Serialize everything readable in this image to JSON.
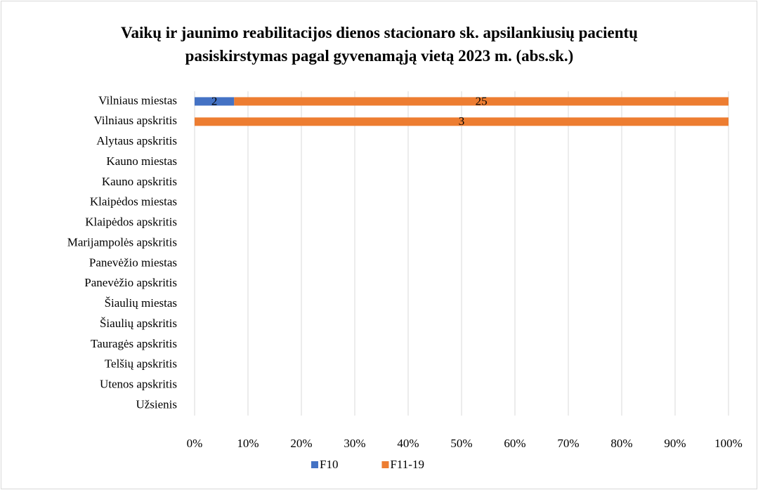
{
  "chart_data": {
    "type": "bar",
    "orientation": "horizontal",
    "stacking": "percent",
    "title": "Vaikų ir jaunimo reabilitacijos dienos stacionaro sk. apsilankiusių pacientų pasiskirstymas pagal gyvenamąją vietą 2023 m. (abs.sk.)",
    "categories": [
      "Vilniaus miestas",
      "Vilniaus apskritis",
      "Alytaus apskritis",
      "Kauno miestas",
      "Kauno apskritis",
      "Klaipėdos miestas",
      "Klaipėdos apskritis",
      "Marijampolės apskritis",
      "Panevėžio miestas",
      "Panevėžio apskritis",
      "Šiaulių miestas",
      "Šiaulių apskritis",
      "Tauragės apskritis",
      "Telšių apskritis",
      "Utenos apskritis",
      "Užsienis"
    ],
    "series": [
      {
        "name": "F10",
        "color": "#4472c4",
        "values": [
          2,
          null,
          null,
          null,
          null,
          null,
          null,
          null,
          null,
          null,
          null,
          null,
          null,
          null,
          null,
          null
        ]
      },
      {
        "name": "F11-19",
        "color": "#ed7d31",
        "values": [
          25,
          3,
          null,
          null,
          null,
          null,
          null,
          null,
          null,
          null,
          null,
          null,
          null,
          null,
          null,
          null
        ]
      }
    ],
    "xlim": [
      0,
      100
    ],
    "xticks": [
      {
        "value": 0,
        "label": "0%"
      },
      {
        "value": 10,
        "label": "10%"
      },
      {
        "value": 20,
        "label": "20%"
      },
      {
        "value": 30,
        "label": "30%"
      },
      {
        "value": 40,
        "label": "40%"
      },
      {
        "value": 50,
        "label": "50%"
      },
      {
        "value": 60,
        "label": "60%"
      },
      {
        "value": 70,
        "label": "70%"
      },
      {
        "value": 80,
        "label": "80%"
      },
      {
        "value": 90,
        "label": "90%"
      },
      {
        "value": 100,
        "label": "100%"
      }
    ],
    "grid": true,
    "legend": "bottom"
  }
}
